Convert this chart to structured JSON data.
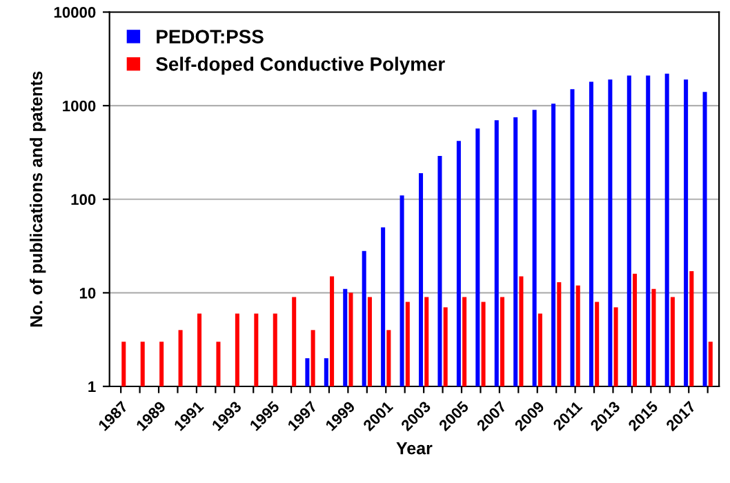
{
  "chart_data": {
    "type": "bar",
    "xlabel": "Year",
    "ylabel": "No. of publications and patents",
    "log": true,
    "ylim": [
      1,
      10000
    ],
    "yticks": [
      1,
      10,
      100,
      1000,
      10000
    ],
    "grid": "y",
    "legend": "top left",
    "categories": [
      "1987",
      null,
      "1989",
      null,
      "1991",
      null,
      "1993",
      null,
      "1995",
      null,
      "1997",
      null,
      "1999",
      null,
      "2001",
      null,
      "2003",
      null,
      "2005",
      null,
      "2007",
      null,
      "2009",
      null,
      "2011",
      null,
      "2013",
      null,
      "2015",
      null,
      "2017",
      null
    ],
    "series": [
      {
        "name": "PEDOT:PSS",
        "color": "#0000ff",
        "values": [
          null,
          null,
          null,
          null,
          null,
          null,
          null,
          null,
          null,
          null,
          2,
          2,
          11,
          28,
          50,
          110,
          190,
          290,
          420,
          570,
          700,
          750,
          900,
          1050,
          1500,
          1800,
          1900,
          2100,
          2100,
          2200,
          1900,
          1400
        ]
      },
      {
        "name": "Self-doped Conductive Polymer",
        "color": "#ff0000",
        "values": [
          3,
          3,
          3,
          4,
          6,
          3,
          6,
          6,
          6,
          9,
          4,
          15,
          10,
          9,
          4,
          8,
          9,
          7,
          9,
          8,
          9,
          15,
          6,
          13,
          12,
          8,
          7,
          16,
          11,
          9,
          17,
          3
        ]
      }
    ]
  }
}
